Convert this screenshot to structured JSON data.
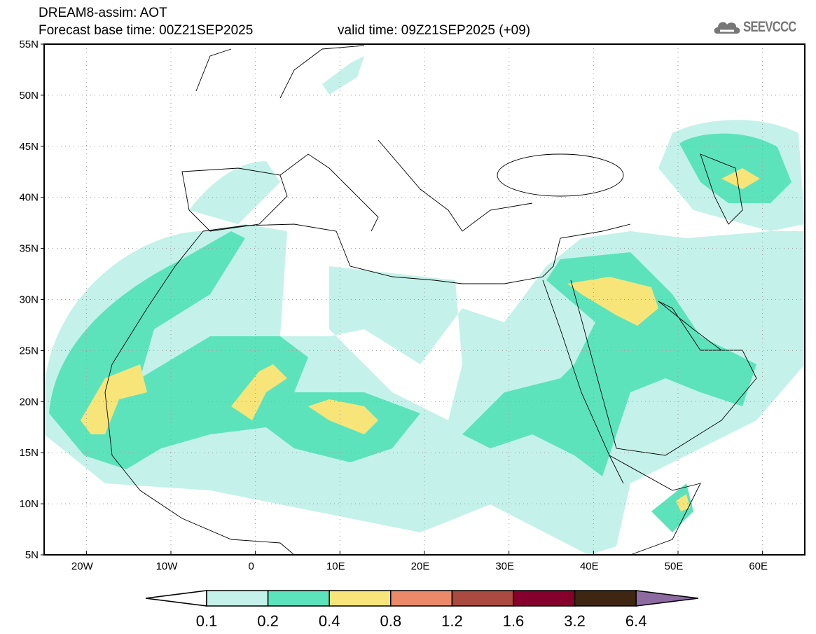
{
  "header": {
    "title": "DREAM8-assim: AOT",
    "base_time": "Forecast base time: 00Z21SEP2025",
    "valid_time": "valid time: 09Z21SEP2025 (+09)",
    "logo_text": "SEEVCCC"
  },
  "map": {
    "lon_range": [
      -25,
      65
    ],
    "lat_range": [
      5,
      55
    ],
    "lat_labels": [
      {
        "lat": 5,
        "label": "5N"
      },
      {
        "lat": 10,
        "label": "10N"
      },
      {
        "lat": 15,
        "label": "15N"
      },
      {
        "lat": 20,
        "label": "20N"
      },
      {
        "lat": 25,
        "label": "25N"
      },
      {
        "lat": 30,
        "label": "30N"
      },
      {
        "lat": 35,
        "label": "35N"
      },
      {
        "lat": 40,
        "label": "40N"
      },
      {
        "lat": 45,
        "label": "45N"
      },
      {
        "lat": 50,
        "label": "50N"
      },
      {
        "lat": 55,
        "label": "55N"
      }
    ],
    "lon_labels": [
      {
        "lon": -20,
        "label": "20W"
      },
      {
        "lon": -10,
        "label": "10W"
      },
      {
        "lon": 0,
        "label": "0"
      },
      {
        "lon": 10,
        "label": "10E"
      },
      {
        "lon": 20,
        "label": "20E"
      },
      {
        "lon": 30,
        "label": "30E"
      },
      {
        "lon": 40,
        "label": "40E"
      },
      {
        "lon": 50,
        "label": "50E"
      },
      {
        "lon": 60,
        "label": "60E"
      }
    ]
  },
  "colorbar": {
    "levels": [
      "0.1",
      "0.2",
      "0.4",
      "0.8",
      "1.2",
      "1.6",
      "3.2",
      "6.4"
    ],
    "colors": [
      "#ffffff",
      "#c4f2ea",
      "#5de3bc",
      "#f7e57a",
      "#ea8a68",
      "#aa4a40",
      "#85002d",
      "#3e2612",
      "#8d6aa0"
    ]
  }
}
